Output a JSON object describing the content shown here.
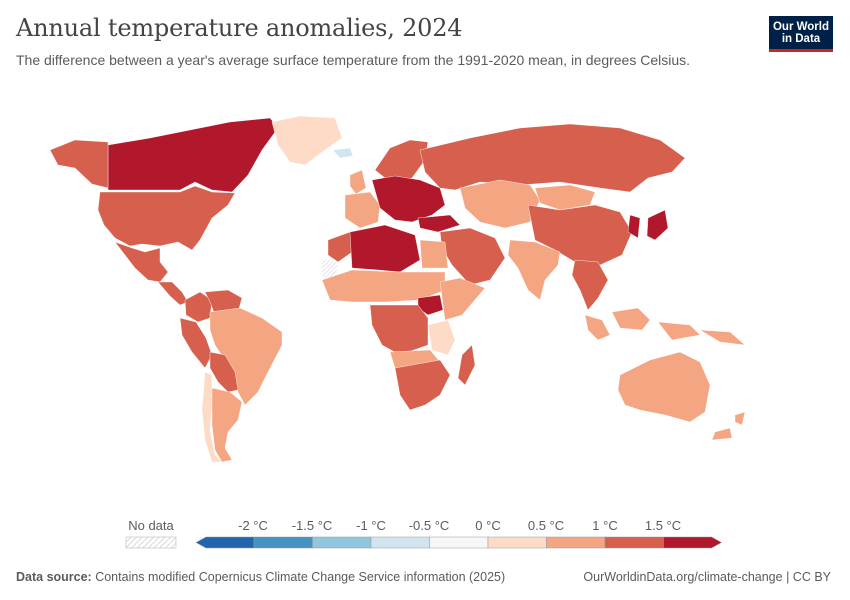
{
  "header": {
    "title": "Annual temperature anomalies, 2024",
    "subtitle": "The difference between a year's average surface temperature from the 1991-2020 mean, in degrees Celsius."
  },
  "logo": {
    "line1": "Our World",
    "line2": "in Data"
  },
  "colors": {
    "accent_red": "#ce261e",
    "brand_navy": "#002147",
    "no_data_hatch": "#cccccc"
  },
  "map": {
    "type": "choropleth",
    "variable": "temperature anomaly (°C)",
    "regions": [
      {
        "region": "Canada",
        "bin": "1.5+"
      },
      {
        "region": "Greenland",
        "bin": "0-0.5"
      },
      {
        "region": "Alaska",
        "bin": "1-1.5"
      },
      {
        "region": "United States",
        "bin": "1-1.5"
      },
      {
        "region": "Mexico",
        "bin": "1-1.5"
      },
      {
        "region": "Central America & Caribbean",
        "bin": "1-1.5"
      },
      {
        "region": "Colombia",
        "bin": "1-1.5"
      },
      {
        "region": "Venezuela",
        "bin": "1-1.5"
      },
      {
        "region": "Peru",
        "bin": "1-1.5"
      },
      {
        "region": "Brazil",
        "bin": "0.5-1"
      },
      {
        "region": "Bolivia & Paraguay",
        "bin": "1-1.5"
      },
      {
        "region": "Chile",
        "bin": "0-0.5"
      },
      {
        "region": "Argentina",
        "bin": "0.5-1"
      },
      {
        "region": "Iceland",
        "bin": "-0.5-0"
      },
      {
        "region": "Scandinavia",
        "bin": "1-1.5"
      },
      {
        "region": "United Kingdom",
        "bin": "0.5-1"
      },
      {
        "region": "Western Europe",
        "bin": "0.5-1"
      },
      {
        "region": "Central & Eastern Europe",
        "bin": "1.5+"
      },
      {
        "region": "Turkey",
        "bin": "1.5+"
      },
      {
        "region": "Russia",
        "bin": "1-1.5"
      },
      {
        "region": "Kazakhstan & Central Asia",
        "bin": "0.5-1"
      },
      {
        "region": "Mongolia",
        "bin": "0.5-1"
      },
      {
        "region": "China",
        "bin": "1-1.5"
      },
      {
        "region": "Korea & Japan",
        "bin": "1.5+"
      },
      {
        "region": "India",
        "bin": "0.5-1"
      },
      {
        "region": "Southeast Asia",
        "bin": "1-1.5"
      },
      {
        "region": "Indonesia",
        "bin": "0.5-1"
      },
      {
        "region": "Middle East",
        "bin": "1-1.5"
      },
      {
        "region": "Algeria & Libya",
        "bin": "1.5+"
      },
      {
        "region": "Morocco",
        "bin": "1-1.5"
      },
      {
        "region": "Western Sahara",
        "bin": "no data"
      },
      {
        "region": "Sahel",
        "bin": "0.5-1"
      },
      {
        "region": "Egypt",
        "bin": "0.5-1"
      },
      {
        "region": "South Sudan",
        "bin": "1.5+"
      },
      {
        "region": "Central Africa",
        "bin": "1-1.5"
      },
      {
        "region": "Horn of Africa",
        "bin": "0.5-1"
      },
      {
        "region": "Tanzania",
        "bin": "0-0.5"
      },
      {
        "region": "Angola & Zambia",
        "bin": "0.5-1"
      },
      {
        "region": "Southern Africa",
        "bin": "1-1.5"
      },
      {
        "region": "Madagascar",
        "bin": "1-1.5"
      },
      {
        "region": "Australia",
        "bin": "0.5-1"
      },
      {
        "region": "New Zealand",
        "bin": "0.5-1"
      },
      {
        "region": "Papua New Guinea",
        "bin": "0.5-1"
      }
    ]
  },
  "legend": {
    "no_data_label": "No data",
    "ticks": [
      "-2 °C",
      "-1.5 °C",
      "-1 °C",
      "-0.5 °C",
      "0 °C",
      "0.5 °C",
      "1 °C",
      "1.5 °C"
    ],
    "bins": [
      {
        "color": "#2166ac"
      },
      {
        "color": "#4393c3"
      },
      {
        "color": "#92c5de"
      },
      {
        "color": "#d1e5f0"
      },
      {
        "color": "#f7f7f7"
      },
      {
        "color": "#fddbc7"
      },
      {
        "color": "#f4a582"
      },
      {
        "color": "#d6604d"
      },
      {
        "color": "#b2182b"
      }
    ]
  },
  "footer": {
    "source_label": "Data source:",
    "source_text": " Contains modified Copernicus Climate Change Service information (2025)",
    "url": "OurWorldinData.org/climate-change",
    "license": " | CC BY"
  }
}
